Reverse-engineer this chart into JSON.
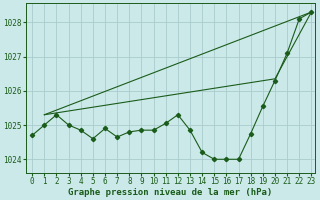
{
  "title": "Graphe pression niveau de la mer (hPa)",
  "background_color": "#cce9e9",
  "grid_color": "#aacccc",
  "line_color": "#1a5c1a",
  "xlim_min": -0.5,
  "xlim_max": 23.3,
  "ylim_min": 1023.6,
  "ylim_max": 1028.55,
  "yticks": [
    1024,
    1025,
    1026,
    1027,
    1028
  ],
  "xticks": [
    0,
    1,
    2,
    3,
    4,
    5,
    6,
    7,
    8,
    9,
    10,
    11,
    12,
    13,
    14,
    15,
    16,
    17,
    18,
    19,
    20,
    21,
    22,
    23
  ],
  "series1_x": [
    0,
    1,
    2,
    3,
    4,
    5,
    6,
    7,
    8,
    9,
    10,
    11,
    12,
    13,
    14,
    15,
    16,
    17,
    18,
    19,
    20,
    21,
    22,
    23
  ],
  "series1_y": [
    1024.7,
    1025.0,
    1025.3,
    1025.0,
    1024.85,
    1024.6,
    1024.9,
    1024.65,
    1024.8,
    1024.85,
    1024.85,
    1025.05,
    1025.3,
    1024.85,
    1024.2,
    1024.0,
    1024.0,
    1024.0,
    1024.75,
    1025.55,
    1026.3,
    1027.1,
    1028.1,
    1028.3
  ],
  "series2_x": [
    1,
    23
  ],
  "series2_y": [
    1025.3,
    1028.3
  ],
  "series3_x": [
    1,
    20,
    23
  ],
  "series3_y": [
    1025.3,
    1026.35,
    1028.3
  ],
  "tick_fontsize": 5.5,
  "xlabel_fontsize": 6.5
}
